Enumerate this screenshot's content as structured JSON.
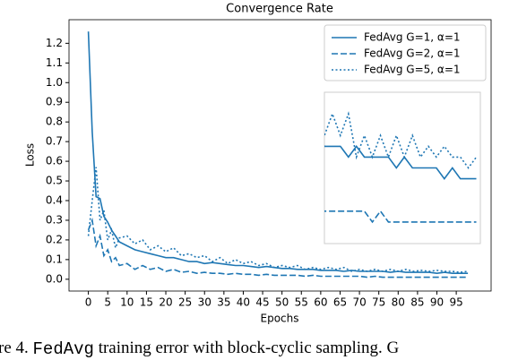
{
  "chart_data": {
    "type": "line",
    "title": "Convergence Rate",
    "xlabel": "Epochs",
    "ylabel": "Loss",
    "x": [
      0,
      1,
      2,
      3,
      4,
      5,
      6,
      7,
      8,
      10,
      12,
      14,
      16,
      18,
      20,
      22,
      24,
      26,
      28,
      30,
      32,
      34,
      36,
      38,
      40,
      42,
      44,
      46,
      48,
      50,
      52,
      54,
      56,
      58,
      60,
      62,
      64,
      66,
      68,
      70,
      72,
      74,
      76,
      78,
      80,
      82,
      84,
      86,
      88,
      90,
      92,
      94,
      96,
      98
    ],
    "series": [
      {
        "name": "FedAvg G=1, α=1",
        "color": "#1f77b4",
        "style": "solid",
        "values": [
          1.26,
          0.75,
          0.42,
          0.41,
          0.32,
          0.29,
          0.25,
          0.22,
          0.19,
          0.17,
          0.15,
          0.14,
          0.13,
          0.12,
          0.11,
          0.11,
          0.1,
          0.09,
          0.09,
          0.08,
          0.085,
          0.08,
          0.075,
          0.07,
          0.07,
          0.065,
          0.06,
          0.065,
          0.06,
          0.055,
          0.055,
          0.05,
          0.05,
          0.05,
          0.045,
          0.045,
          0.045,
          0.04,
          0.045,
          0.04,
          0.04,
          0.04,
          0.04,
          0.035,
          0.04,
          0.035,
          0.035,
          0.035,
          0.035,
          0.03,
          0.035,
          0.03,
          0.03,
          0.03
        ]
      },
      {
        "name": "FedAvg G=2, α=1",
        "color": "#1f77b4",
        "style": "dashed",
        "values": [
          0.25,
          0.3,
          0.17,
          0.22,
          0.12,
          0.15,
          0.09,
          0.11,
          0.07,
          0.08,
          0.05,
          0.07,
          0.05,
          0.06,
          0.04,
          0.05,
          0.035,
          0.04,
          0.03,
          0.035,
          0.03,
          0.03,
          0.025,
          0.03,
          0.025,
          0.025,
          0.02,
          0.025,
          0.02,
          0.02,
          0.02,
          0.02,
          0.015,
          0.02,
          0.015,
          0.015,
          0.015,
          0.015,
          0.015,
          0.015,
          0.01,
          0.015,
          0.01,
          0.01,
          0.01,
          0.01,
          0.01,
          0.01,
          0.01,
          0.01,
          0.01,
          0.01,
          0.01,
          0.01
        ]
      },
      {
        "name": "FedAvg G=5, α=1",
        "color": "#1f77b4",
        "style": "dotted",
        "values": [
          0.22,
          0.4,
          0.57,
          0.3,
          0.35,
          0.2,
          0.25,
          0.16,
          0.21,
          0.22,
          0.18,
          0.2,
          0.15,
          0.17,
          0.14,
          0.16,
          0.12,
          0.13,
          0.11,
          0.12,
          0.09,
          0.11,
          0.08,
          0.1,
          0.08,
          0.09,
          0.07,
          0.08,
          0.06,
          0.07,
          0.06,
          0.07,
          0.05,
          0.06,
          0.05,
          0.06,
          0.05,
          0.06,
          0.04,
          0.05,
          0.04,
          0.05,
          0.04,
          0.05,
          0.04,
          0.05,
          0.04,
          0.045,
          0.04,
          0.045,
          0.04,
          0.04,
          0.035,
          0.04
        ]
      }
    ],
    "xlim": [
      -5,
      104
    ],
    "ylim": [
      -0.06,
      1.32
    ],
    "xticks": [
      0,
      5,
      10,
      15,
      20,
      25,
      30,
      35,
      40,
      45,
      50,
      55,
      60,
      65,
      70,
      75,
      80,
      85,
      90,
      95
    ],
    "yticks": [
      {
        "value": 0,
        "label": "0.0"
      },
      0.1,
      0.2,
      0.3,
      0.4,
      0.5,
      0.6,
      0.7,
      0.8,
      0.9,
      {
        "value": 1,
        "label": "1.0"
      },
      1.1,
      1.2
    ],
    "legend": "upper right",
    "inset": {
      "xlim": [
        60,
        99
      ],
      "ylim": [
        0.0,
        0.07
      ]
    }
  },
  "caption": {
    "prefix": "re 4.",
    "code": "FedAvg",
    "suffix": "training error with block-cyclic sampling. G"
  }
}
